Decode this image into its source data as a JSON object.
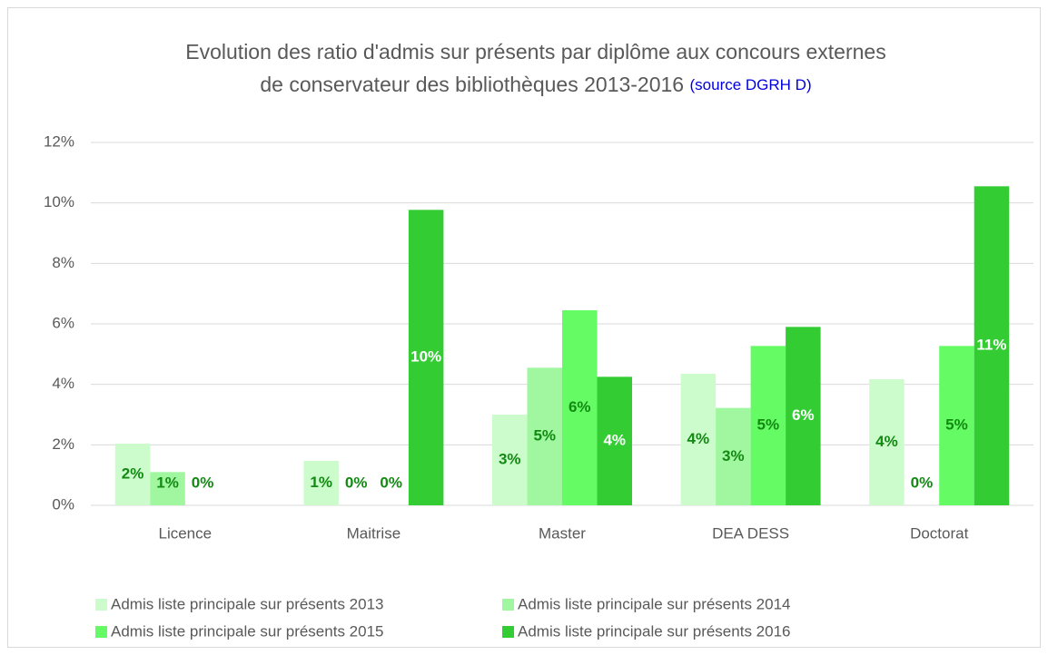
{
  "chart_data": {
    "type": "bar",
    "title": [
      "Evolution des ratio d'admis sur présents par diplôme aux concours externes",
      "de conservateur des bibliothèques 2013-2016"
    ],
    "source": "(source DGRH D)",
    "categories": [
      "Licence",
      "Maitrise",
      "Master",
      "DEA DESS",
      "Doctorat"
    ],
    "series": [
      {
        "name": "Admis liste principale sur présents 2013",
        "color": "#ccfccc",
        "label_color": "#128a12",
        "values": [
          2.04,
          1.47,
          3.0,
          4.35,
          4.17
        ],
        "value_labels": [
          "2%",
          "1%",
          "3%",
          "4%",
          "4%"
        ]
      },
      {
        "name": "Admis liste principale sur présents 2014",
        "color": "#a0f7a0",
        "label_color": "#128a12",
        "values": [
          1.1,
          0,
          4.55,
          3.22,
          0
        ],
        "value_labels": [
          "1%",
          "0%",
          "5%",
          "3%",
          "0%"
        ]
      },
      {
        "name": "Admis liste principale sur présents 2015",
        "color": "#64fb64",
        "label_color": "#128a12",
        "values": [
          0,
          0,
          6.45,
          5.27,
          5.27
        ],
        "value_labels": [
          "0%",
          "0%",
          "6%",
          "5%",
          "5%"
        ]
      },
      {
        "name": "Admis liste principale sur présents 2016",
        "color": "#33cc33",
        "label_color": "#ffffff",
        "values": [
          null,
          9.77,
          4.25,
          5.9,
          10.55
        ],
        "value_labels": [
          null,
          "10%",
          "4%",
          "6%",
          "11%"
        ]
      }
    ],
    "ylim": [
      0,
      12
    ],
    "yticks": [
      {
        "value": 0,
        "label": "0%"
      },
      {
        "value": 2,
        "label": "2%"
      },
      {
        "value": 4,
        "label": "4%"
      },
      {
        "value": 6,
        "label": "6%"
      },
      {
        "value": 8,
        "label": "8%"
      },
      {
        "value": 10,
        "label": "10%"
      },
      {
        "value": 12,
        "label": "12%"
      }
    ],
    "grid": true
  }
}
